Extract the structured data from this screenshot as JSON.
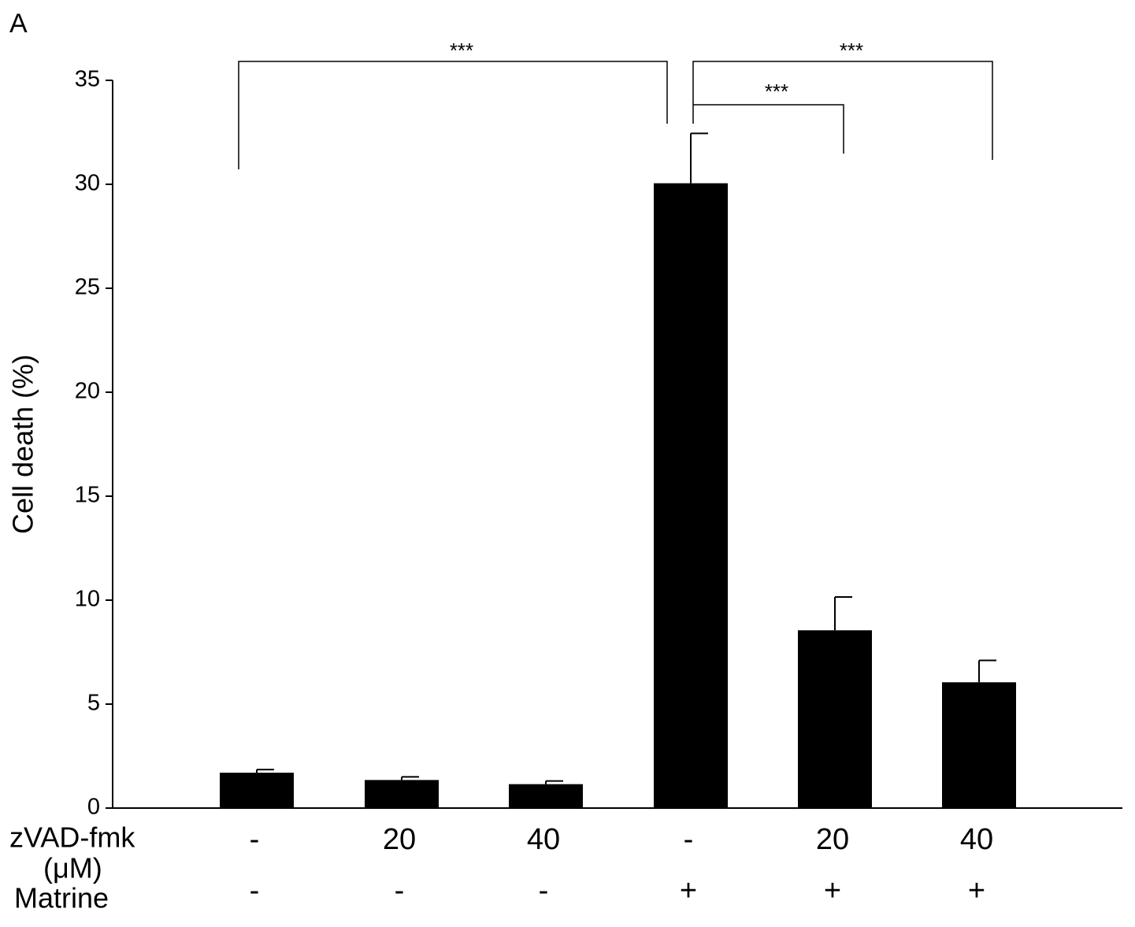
{
  "chart_data": {
    "type": "bar",
    "panel_label": "A",
    "ylabel": "Cell death (%)",
    "values": [
      1.7,
      1.35,
      1.15,
      30.05,
      8.55,
      6.05
    ],
    "errors": [
      0.15,
      0.15,
      0.15,
      2.4,
      1.6,
      1.05
    ],
    "color": "#000000",
    "ylim": [
      0,
      35
    ],
    "yticks": [
      0,
      5,
      10,
      15,
      20,
      25,
      30,
      35
    ],
    "condition_rows": [
      {
        "label": [
          "zVAD-fmk",
          "(μM)"
        ],
        "values": [
          "-",
          "20",
          "40",
          "-",
          "20",
          "40"
        ]
      },
      {
        "label": [
          "Matrine"
        ],
        "values": [
          "-",
          "-",
          "-",
          "+",
          "+",
          "+"
        ]
      }
    ],
    "annotations": [
      "***",
      "***",
      "***"
    ]
  }
}
